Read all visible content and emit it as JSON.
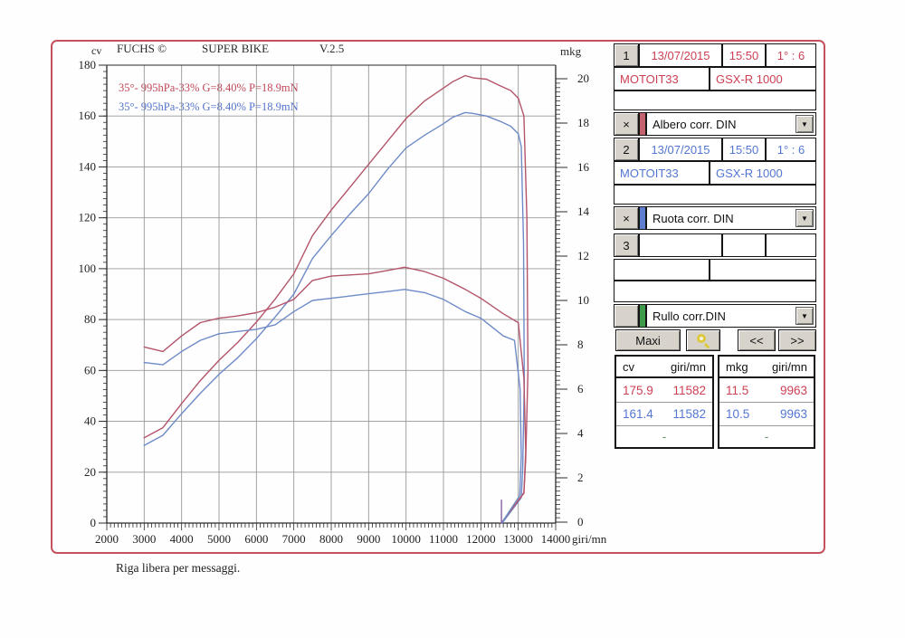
{
  "chart": {
    "header": {
      "left_unit": "cv",
      "brand": "FUCHS ©",
      "title": "SUPER BIKE",
      "version": "V.2.5",
      "right_unit": "mkg"
    },
    "legend": [
      {
        "text": "35°- 995hPa-33% G=8.40% P=18.9mN",
        "color": "#c04858"
      },
      {
        "text": "35°- 995hPa-33% G=8.40% P=18.9mN",
        "color": "#5474cc"
      }
    ],
    "x_axis": {
      "label": "giri/mn",
      "min": 2000,
      "max": 14000,
      "step": 1000,
      "minor_step": 100
    },
    "y_left": {
      "unit": "cv",
      "min": 0,
      "max": 180,
      "step": 20,
      "minor_step": 2.5
    },
    "y_right": {
      "unit": "mkg",
      "min": 0,
      "max": 20,
      "step": 2,
      "minor_step": 0.2
    },
    "footer_note": "Riga libera per messaggi.",
    "grid_color": "#979797",
    "axis_color": "#2b2b2b",
    "label_color": "#222222"
  },
  "chart_data": {
    "type": "line",
    "title": "FUCHS SUPER BIKE V.2.5 dyno run — GSX-R 1000",
    "xlabel": "giri/mn",
    "x_range": [
      2000,
      14000
    ],
    "ylabel_left": "cv",
    "ylim_left": [
      0,
      180
    ],
    "ylabel_right": "mkg",
    "ylim_right": [
      0,
      20
    ],
    "grid": true,
    "series": [
      {
        "name": "power-albero-corr-DIN",
        "unit": "cv",
        "axis": "left",
        "color": "#b4556a",
        "max_label": "175.9 cv @ 11582",
        "points": [
          [
            3000,
            33.5
          ],
          [
            3500,
            37.5
          ],
          [
            4000,
            47
          ],
          [
            4500,
            56
          ],
          [
            5000,
            64
          ],
          [
            5500,
            71
          ],
          [
            6000,
            79
          ],
          [
            6500,
            88
          ],
          [
            7000,
            98
          ],
          [
            7500,
            113
          ],
          [
            8000,
            123
          ],
          [
            8500,
            132
          ],
          [
            9000,
            141
          ],
          [
            9500,
            150
          ],
          [
            10000,
            159
          ],
          [
            10500,
            166
          ],
          [
            11000,
            171
          ],
          [
            11250,
            173.5
          ],
          [
            11582,
            175.9
          ],
          [
            11800,
            175
          ],
          [
            12150,
            174.5
          ],
          [
            12500,
            172
          ],
          [
            12800,
            170
          ],
          [
            13000,
            167
          ],
          [
            13150,
            160
          ],
          [
            13230,
            120
          ],
          [
            13260,
            60
          ],
          [
            13200,
            25
          ],
          [
            13150,
            12
          ],
          [
            12560,
            0
          ]
        ]
      },
      {
        "name": "power-ruota-corr-DIN",
        "unit": "cv",
        "axis": "left",
        "color": "#6e8bc8",
        "max_label": "161.4 cv @ 11582",
        "points": [
          [
            3000,
            30.5
          ],
          [
            3500,
            34.5
          ],
          [
            4000,
            43
          ],
          [
            4500,
            51
          ],
          [
            5000,
            58.5
          ],
          [
            5500,
            65
          ],
          [
            6000,
            72.5
          ],
          [
            6500,
            81
          ],
          [
            7000,
            90
          ],
          [
            7500,
            104
          ],
          [
            8000,
            113
          ],
          [
            8500,
            121.5
          ],
          [
            9000,
            129.5
          ],
          [
            9500,
            139
          ],
          [
            10000,
            147.5
          ],
          [
            10500,
            152.5
          ],
          [
            11000,
            157
          ],
          [
            11250,
            159.5
          ],
          [
            11582,
            161.4
          ],
          [
            11800,
            161
          ],
          [
            12150,
            160
          ],
          [
            12500,
            158
          ],
          [
            12800,
            156
          ],
          [
            13000,
            153
          ],
          [
            13080,
            148
          ],
          [
            13140,
            110
          ],
          [
            13160,
            55
          ],
          [
            13120,
            22
          ],
          [
            13080,
            10
          ],
          [
            12570,
            0
          ]
        ]
      },
      {
        "name": "torque-albero",
        "unit": "mkg",
        "axis": "right",
        "color": "#b4556a",
        "max_label": "11.5 mkg @ 9963",
        "points": [
          [
            3000,
            7.9
          ],
          [
            3500,
            7.7
          ],
          [
            4000,
            8.4
          ],
          [
            4500,
            9.0
          ],
          [
            5000,
            9.2
          ],
          [
            5500,
            9.3
          ],
          [
            6000,
            9.45
          ],
          [
            6500,
            9.7
          ],
          [
            7000,
            10.05
          ],
          [
            7500,
            10.9
          ],
          [
            8000,
            11.1
          ],
          [
            8500,
            11.15
          ],
          [
            9000,
            11.2
          ],
          [
            9500,
            11.35
          ],
          [
            9963,
            11.5
          ],
          [
            10500,
            11.3
          ],
          [
            11000,
            11.0
          ],
          [
            11582,
            10.5
          ],
          [
            12000,
            10.1
          ],
          [
            12600,
            9.4
          ],
          [
            13000,
            9.0
          ],
          [
            13150,
            6.5
          ],
          [
            13200,
            3.2
          ],
          [
            13150,
            1.3
          ],
          [
            12560,
            0
          ]
        ]
      },
      {
        "name": "torque-ruota",
        "unit": "mkg",
        "axis": "right",
        "color": "#6e8bc8",
        "max_label": "10.5 mkg @ 9963",
        "points": [
          [
            3000,
            7.2
          ],
          [
            3500,
            7.1
          ],
          [
            4000,
            7.7
          ],
          [
            4500,
            8.2
          ],
          [
            5000,
            8.5
          ],
          [
            5500,
            8.6
          ],
          [
            6000,
            8.7
          ],
          [
            6500,
            8.9
          ],
          [
            7000,
            9.5
          ],
          [
            7500,
            10.0
          ],
          [
            8000,
            10.1
          ],
          [
            8500,
            10.2
          ],
          [
            9000,
            10.3
          ],
          [
            9500,
            10.4
          ],
          [
            9963,
            10.5
          ],
          [
            10500,
            10.35
          ],
          [
            11000,
            10.05
          ],
          [
            11582,
            9.5
          ],
          [
            12000,
            9.2
          ],
          [
            12600,
            8.4
          ],
          [
            12900,
            8.2
          ],
          [
            13050,
            6.0
          ],
          [
            13080,
            3.0
          ],
          [
            13040,
            1.2
          ],
          [
            12570,
            0
          ]
        ]
      },
      {
        "name": "run-start-marker",
        "unit": "cv",
        "axis": "left",
        "color": "#8b5f9e",
        "points": [
          [
            12550,
            9
          ],
          [
            12550,
            0
          ]
        ]
      }
    ]
  },
  "panel": {
    "runs": [
      {
        "index": "1",
        "date": "13/07/2015",
        "time": "15:50",
        "ratio": "1° : 6",
        "pilot": "MOTOIT33",
        "bike": "GSX-R 1000",
        "close_label": "×",
        "channel": "Albero corr. DIN",
        "color": "#cc4054",
        "swatch": "#c4636d"
      },
      {
        "index": "2",
        "date": "13/07/2015",
        "time": "15:50",
        "ratio": "1° : 6",
        "pilot": "MOTOIT33",
        "bike": "GSX-R 1000",
        "close_label": "×",
        "channel": "Ruota corr. DIN",
        "color": "#5276d2",
        "swatch": "#5e7fd0"
      },
      {
        "index": "3",
        "date": "",
        "time": "",
        "ratio": "",
        "pilot": "",
        "bike": "",
        "close_label": "",
        "channel": "Rullo corr.DIN",
        "color": "#111111",
        "swatch": "#3f9a4a"
      }
    ],
    "buttons": {
      "maxi": "Maxi",
      "prev": "<<",
      "next": ">>"
    },
    "results": {
      "headers": {
        "cv": "cv",
        "cv_rpm": "giri/mn",
        "mkg": "mkg",
        "mkg_rpm": "giri/mn"
      },
      "rows": [
        {
          "cv": "175.9",
          "cv_rpm": "11582",
          "mkg": "11.5",
          "mkg_rpm": "9963",
          "color": "#cc4054"
        },
        {
          "cv": "161.4",
          "cv_rpm": "11582",
          "mkg": "10.5",
          "mkg_rpm": "9963",
          "color": "#5276d2"
        },
        {
          "dash1": "-",
          "dash2": "-",
          "color": "#6a8a6a"
        }
      ]
    }
  }
}
